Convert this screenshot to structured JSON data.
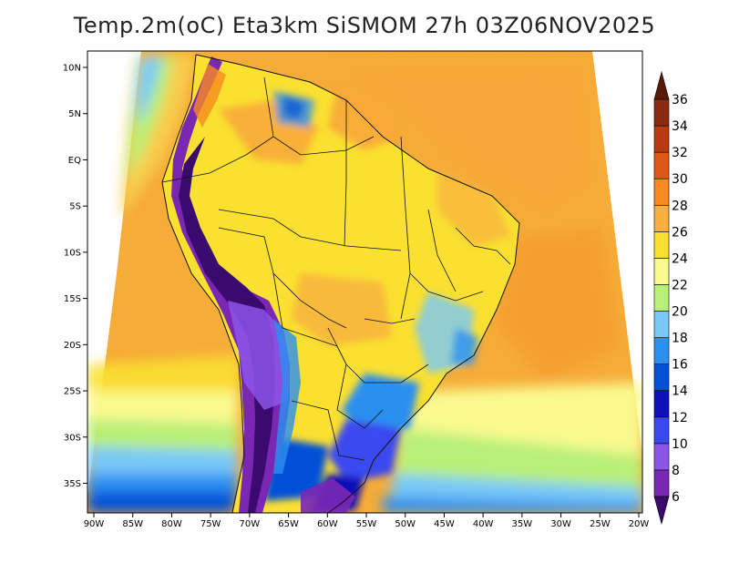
{
  "title": "Temp.2m(oC) Eta3km SiSMOM 27h 03Z06NOV2025",
  "chart_data": {
    "type": "heatmap",
    "title": "Temp.2m(oC) Eta3km SiSMOM 27h 03Z06NOV2025",
    "variable": "Temp.2m",
    "units": "oC",
    "model": "Eta3km SiSMOM",
    "forecast_hour": "27h",
    "valid_time": "03Z06NOV2025",
    "lon_ticks": [
      {
        "value": -90,
        "label": "90W"
      },
      {
        "value": -85,
        "label": "85W"
      },
      {
        "value": -80,
        "label": "80W"
      },
      {
        "value": -75,
        "label": "75W"
      },
      {
        "value": -70,
        "label": "70W"
      },
      {
        "value": -65,
        "label": "65W"
      },
      {
        "value": -60,
        "label": "60W"
      },
      {
        "value": -55,
        "label": "55W"
      },
      {
        "value": -50,
        "label": "50W"
      },
      {
        "value": -45,
        "label": "45W"
      },
      {
        "value": -40,
        "label": "40W"
      },
      {
        "value": -35,
        "label": "35W"
      },
      {
        "value": -30,
        "label": "30W"
      },
      {
        "value": -25,
        "label": "25W"
      },
      {
        "value": -20,
        "label": "20W"
      }
    ],
    "lat_ticks": [
      {
        "value": 10,
        "label": "10N"
      },
      {
        "value": 5,
        "label": "5N"
      },
      {
        "value": 0,
        "label": "EQ"
      },
      {
        "value": -5,
        "label": "5S"
      },
      {
        "value": -10,
        "label": "10S"
      },
      {
        "value": -15,
        "label": "15S"
      },
      {
        "value": -20,
        "label": "20S"
      },
      {
        "value": -25,
        "label": "25S"
      },
      {
        "value": -30,
        "label": "30S"
      },
      {
        "value": -35,
        "label": "35S"
      }
    ],
    "lon_range": [
      -91,
      -19
    ],
    "lat_range": [
      -38,
      12
    ],
    "colorbar": {
      "levels": [
        {
          "value": 6,
          "label": "6"
        },
        {
          "value": 8,
          "label": "8"
        },
        {
          "value": 10,
          "label": "10"
        },
        {
          "value": 12,
          "label": "12"
        },
        {
          "value": 14,
          "label": "14"
        },
        {
          "value": 16,
          "label": "16"
        },
        {
          "value": 18,
          "label": "18"
        },
        {
          "value": 20,
          "label": "20"
        },
        {
          "value": 22,
          "label": "22"
        },
        {
          "value": 24,
          "label": "24"
        },
        {
          "value": 26,
          "label": "26"
        },
        {
          "value": 28,
          "label": "28"
        },
        {
          "value": 30,
          "label": "30"
        },
        {
          "value": 32,
          "label": "32"
        },
        {
          "value": 34,
          "label": "34"
        },
        {
          "value": 36,
          "label": "36"
        }
      ],
      "colors": [
        "#3a0a6e",
        "#7a28b4",
        "#8d55e8",
        "#3a48f0",
        "#1010b8",
        "#0050d8",
        "#2c90f0",
        "#78c8f8",
        "#b8f078",
        "#fafa90",
        "#fae030",
        "#f8b040",
        "#f88a20",
        "#e05818",
        "#b83a10",
        "#8a2a10",
        "#5a1a0a"
      ],
      "min_color": "#3a0a6e",
      "max_color": "#5a1a0a"
    },
    "land_color": "#f8b040",
    "ocean_color": "#f6ac38"
  }
}
